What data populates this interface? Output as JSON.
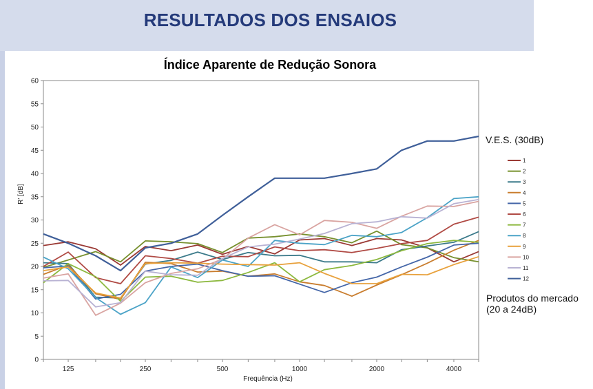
{
  "header": {
    "title": "RESULTADOS DOS ENSAIOS"
  },
  "notes": {
    "ves": "V.E.S. (30dB)",
    "market_line1": "Produtos do mercado",
    "market_line2": "(20 a 24dB)"
  },
  "chart_data": {
    "type": "line",
    "title": "Índice Aparente de Redução Sonora",
    "xlabel": "Frequência (Hz)",
    "ylabel": "R' [dB]",
    "x_scale": "log",
    "x": [
      100,
      125,
      160,
      200,
      250,
      315,
      400,
      500,
      630,
      800,
      1000,
      1250,
      1600,
      2000,
      2500,
      3150,
      4000,
      5000
    ],
    "x_ticks": [
      125,
      250,
      500,
      1000,
      2000,
      4000
    ],
    "x_tick_labels": [
      "125",
      "250",
      "500",
      "1000",
      "2000",
      "4000"
    ],
    "ylim": [
      0,
      60
    ],
    "y_ticks": [
      0,
      5,
      10,
      15,
      20,
      25,
      30,
      35,
      40,
      45,
      50,
      55,
      60
    ],
    "grid": false,
    "legend_position": "right",
    "series": [
      {
        "name": "1",
        "color": "#9b3a35",
        "values": [
          24.5,
          25.3,
          23.8,
          20.3,
          24.3,
          23.4,
          24.6,
          22.6,
          24.3,
          22.7,
          25.7,
          26.0,
          24.5,
          26.0,
          25.7,
          24.0,
          21.0,
          23.2
        ]
      },
      {
        "name": "2",
        "color": "#77902e",
        "values": [
          19.8,
          21.4,
          23.2,
          21.0,
          25.5,
          25.3,
          24.9,
          23.0,
          26.1,
          26.4,
          27.0,
          26.4,
          25.1,
          27.6,
          24.7,
          24.0,
          21.9,
          21.0
        ]
      },
      {
        "name": "3",
        "color": "#3b7a8a",
        "values": [
          20.8,
          20.6,
          13.4,
          13.2,
          20.5,
          21.3,
          23.1,
          21.5,
          23.0,
          22.3,
          22.4,
          21.0,
          21.0,
          20.8,
          23.6,
          24.4,
          25.2,
          27.5
        ]
      },
      {
        "name": "4",
        "color": "#c97d2e",
        "values": [
          18.3,
          20.3,
          14.1,
          12.9,
          20.9,
          20.6,
          18.8,
          19.0,
          17.9,
          18.4,
          16.7,
          15.9,
          13.6,
          16.0,
          18.2,
          20.7,
          23.5,
          25.6
        ]
      },
      {
        "name": "5",
        "color": "#4466a8",
        "values": [
          19.7,
          20.1,
          13.0,
          14.0,
          19.0,
          20.0,
          20.5,
          19.1,
          17.9,
          18.0,
          16.2,
          14.4,
          16.5,
          17.7,
          19.9,
          22.0,
          24.6,
          25.0
        ]
      },
      {
        "name": "6",
        "color": "#b04a44",
        "values": [
          20.0,
          23.1,
          17.6,
          16.3,
          22.3,
          21.7,
          20.7,
          22.2,
          22.1,
          24.2,
          23.4,
          23.6,
          23.0,
          23.9,
          24.9,
          25.6,
          29.1,
          30.6
        ]
      },
      {
        "name": "7",
        "color": "#8cb83e",
        "values": [
          16.5,
          20.6,
          17.8,
          12.5,
          17.7,
          17.9,
          16.6,
          17.0,
          18.7,
          20.8,
          16.7,
          19.3,
          20.2,
          21.5,
          23.4,
          24.9,
          25.6,
          25.2
        ]
      },
      {
        "name": "8",
        "color": "#4ba3c7",
        "values": [
          22.0,
          19.5,
          13.3,
          9.7,
          12.2,
          19.9,
          17.6,
          21.4,
          20.0,
          25.6,
          25.0,
          24.7,
          26.7,
          26.4,
          27.3,
          30.5,
          34.6,
          35.0
        ]
      },
      {
        "name": "9",
        "color": "#e8a13c",
        "values": [
          19.1,
          19.9,
          14.3,
          13.2,
          20.6,
          20.8,
          20.7,
          20.5,
          20.4,
          20.3,
          20.8,
          18.5,
          16.3,
          16.3,
          18.3,
          18.2,
          20.4,
          22.1
        ]
      },
      {
        "name": "10",
        "color": "#d9a4a1",
        "values": [
          17.5,
          18.4,
          9.5,
          12.1,
          16.5,
          18.5,
          19.5,
          21.6,
          26.1,
          29.0,
          26.8,
          29.9,
          29.5,
          28.2,
          30.8,
          33.0,
          32.9,
          34.0
        ]
      },
      {
        "name": "11",
        "color": "#b8b2d3",
        "values": [
          16.9,
          17.0,
          11.3,
          12.2,
          19.0,
          18.2,
          18.1,
          21.7,
          24.2,
          24.8,
          25.9,
          27.1,
          29.2,
          29.6,
          30.7,
          30.4,
          33.5,
          34.4
        ]
      },
      {
        "name": "12",
        "color": "#3f5f99",
        "values": [
          27.0,
          25.0,
          22.3,
          19.1,
          24.0,
          25.0,
          27.0,
          31.0,
          35.0,
          39.0,
          39.0,
          39.0,
          40.0,
          41.0,
          45.0,
          47.0,
          47.0,
          48.0
        ]
      }
    ]
  }
}
